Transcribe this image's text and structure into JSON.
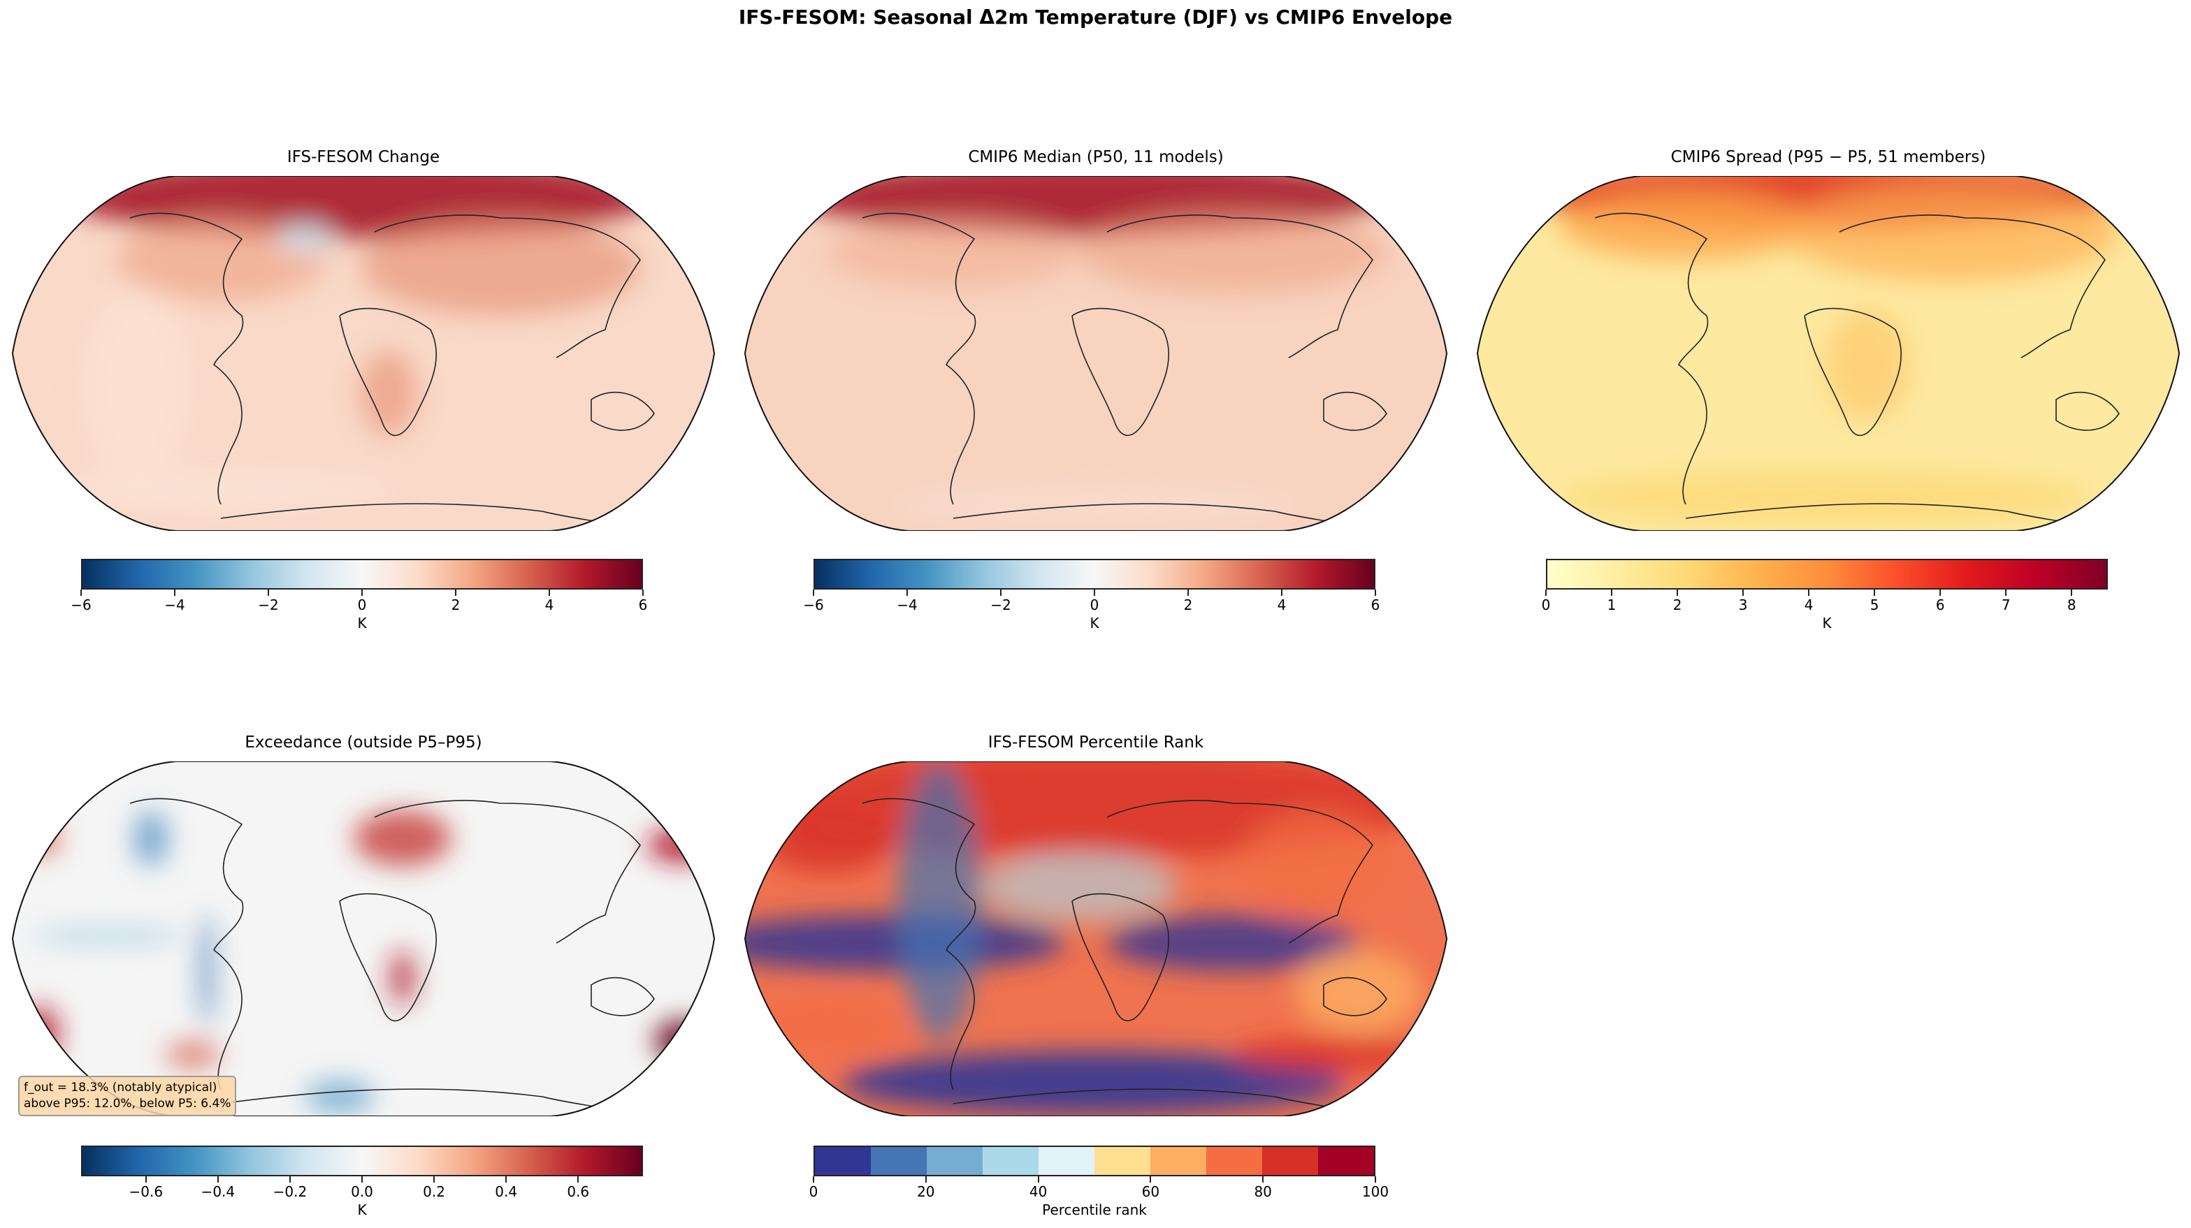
{
  "title": "IFS-FESOM: Seasonal Δ2m Temperature (DJF) vs CMIP6 Envelope",
  "chart_data": [
    {
      "type": "heatmap",
      "title": "IFS-FESOM Change",
      "projection": "robinson",
      "colormap": "RdBu_r",
      "colorbar": {
        "range": [
          -6,
          6
        ],
        "ticks": [
          -6,
          -4,
          -2,
          0,
          2,
          4,
          6
        ],
        "tick_labels": [
          "−6",
          "−4",
          "−2",
          "0",
          "2",
          "4",
          "6"
        ],
        "label": "K"
      }
    },
    {
      "type": "heatmap",
      "title": "CMIP6 Median (P50, 11 models)",
      "projection": "robinson",
      "colormap": "RdBu_r",
      "colorbar": {
        "range": [
          -6,
          6
        ],
        "ticks": [
          -6,
          -4,
          -2,
          0,
          2,
          4,
          6
        ],
        "tick_labels": [
          "−6",
          "−4",
          "−2",
          "0",
          "2",
          "4",
          "6"
        ],
        "label": "K"
      }
    },
    {
      "type": "heatmap",
      "title": "CMIP6 Spread (P95 − P5, 51 members)",
      "projection": "robinson",
      "colormap": "YlOrRd",
      "colorbar": {
        "range": [
          0,
          8.55
        ],
        "ticks": [
          0,
          1,
          2,
          3,
          4,
          5,
          6,
          7,
          8
        ],
        "tick_labels": [
          "0",
          "1",
          "2",
          "3",
          "4",
          "5",
          "6",
          "7",
          "8"
        ],
        "label": "K"
      }
    },
    {
      "type": "heatmap",
      "title": "Exceedance (outside P5–P95)",
      "projection": "robinson",
      "colormap": "RdBu_r",
      "annotation": [
        "f_out = 18.3% (notably atypical)",
        "above P95: 12.0%, below P5: 6.4%"
      ],
      "colorbar": {
        "range": [
          -0.78,
          0.78
        ],
        "ticks": [
          -0.6,
          -0.4,
          -0.2,
          0,
          0.2,
          0.4,
          0.6
        ],
        "tick_labels": [
          "−0.6",
          "−0.4",
          "−0.2",
          "0.0",
          "0.2",
          "0.4",
          "0.6"
        ],
        "label": "K"
      }
    },
    {
      "type": "heatmap",
      "title": "IFS-FESOM Percentile Rank",
      "projection": "robinson",
      "colormap": "RdYlBu_r (10 discrete bins)",
      "bins": [
        "#313695",
        "#4575b4",
        "#74add1",
        "#abd9e9",
        "#e0f3f8",
        "#fee090",
        "#fdae61",
        "#f46d43",
        "#d73027",
        "#a50026"
      ],
      "colorbar": {
        "range": [
          0,
          100
        ],
        "ticks": [
          0,
          20,
          40,
          60,
          80,
          100
        ],
        "tick_labels": [
          "0",
          "20",
          "40",
          "60",
          "80",
          "100"
        ],
        "label": "Percentile rank"
      }
    }
  ]
}
